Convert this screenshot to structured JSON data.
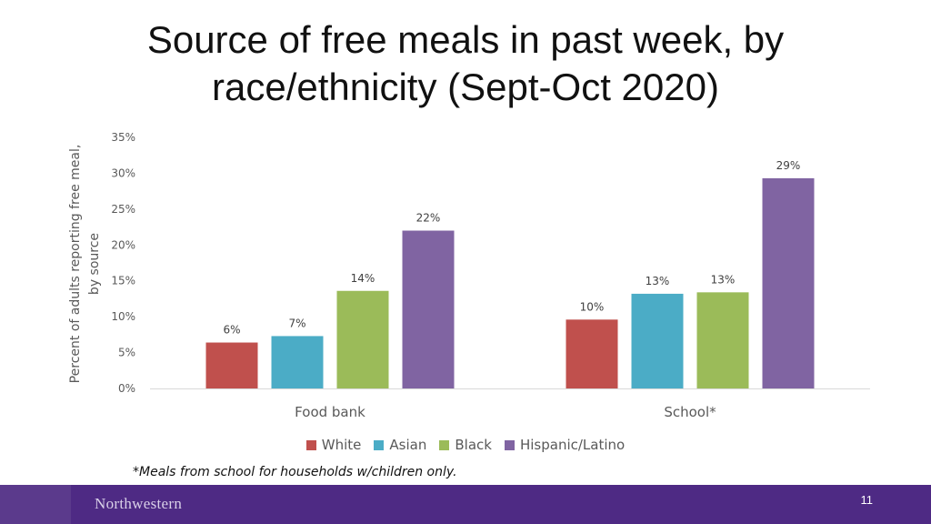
{
  "slide": {
    "title_line1": "Source of free meals in past week, by",
    "title_line2": "race/ethnicity (Sept-Oct 2020)",
    "footnote": "*Meals from school for households w/children only.",
    "brand": "Northwestern",
    "page_number": "11"
  },
  "colors": {
    "white": "#c0504d",
    "asian": "#4bacc6",
    "black": "#9bbb59",
    "hispanic": "#8064a2",
    "footer": "#4e2a84"
  },
  "chart_data": {
    "type": "bar",
    "title": "Source of free meals in past week, by race/ethnicity (Sept-Oct 2020)",
    "xlabel": "",
    "ylabel": "Percent of adults reporting free meal, by source",
    "ylim": [
      0,
      35
    ],
    "yticks": [
      "0%",
      "5%",
      "10%",
      "15%",
      "20%",
      "25%",
      "30%",
      "35%"
    ],
    "categories": [
      "Food bank",
      "School*"
    ],
    "series": [
      {
        "name": "White",
        "values": [
          6.4,
          9.6
        ],
        "labels": [
          "6%",
          "10%"
        ]
      },
      {
        "name": "Asian",
        "values": [
          7.3,
          13.2
        ],
        "labels": [
          "7%",
          "13%"
        ]
      },
      {
        "name": "Black",
        "values": [
          13.6,
          13.4
        ],
        "labels": [
          "14%",
          "13%"
        ]
      },
      {
        "name": "Hispanic/Latino",
        "values": [
          22.0,
          29.3
        ],
        "labels": [
          "22%",
          "29%"
        ]
      }
    ],
    "legend_position": "bottom",
    "grid": false
  }
}
